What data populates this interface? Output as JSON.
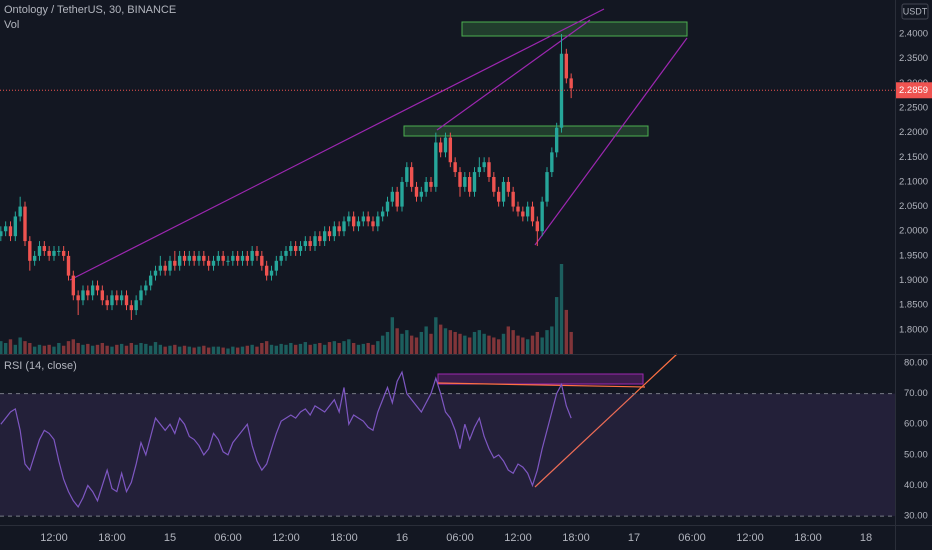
{
  "chart_data": [
    {
      "type": "candlestick",
      "title": "Ontology / TetherUS, 30, BINANCE",
      "volume_label": "Vol",
      "currency": "USDT",
      "up_color": "#26a69a",
      "down_color": "#ef5350",
      "last_price": 2.2859,
      "last_price_color": "#ef5350",
      "open": [
        1.99,
        2.0,
        2.01,
        1.99,
        2.03,
        2.05,
        1.98,
        1.94,
        1.95,
        1.97,
        1.96,
        1.95,
        1.96,
        1.96,
        1.95,
        1.91,
        1.87,
        1.86,
        1.88,
        1.87,
        1.89,
        1.88,
        1.86,
        1.85,
        1.87,
        1.86,
        1.87,
        1.85,
        1.84,
        1.86,
        1.88,
        1.89,
        1.91,
        1.92,
        1.93,
        1.92,
        1.94,
        1.93,
        1.95,
        1.94,
        1.95,
        1.94,
        1.95,
        1.94,
        1.93,
        1.94,
        1.95,
        1.94,
        1.94,
        1.95,
        1.94,
        1.95,
        1.94,
        1.96,
        1.95,
        1.93,
        1.91,
        1.92,
        1.94,
        1.95,
        1.96,
        1.97,
        1.96,
        1.97,
        1.98,
        1.97,
        1.99,
        1.98,
        2.0,
        1.99,
        2.01,
        2.0,
        2.02,
        2.03,
        2.01,
        2.02,
        2.03,
        2.02,
        2.01,
        2.03,
        2.04,
        2.06,
        2.08,
        2.05,
        2.1,
        2.13,
        2.09,
        2.07,
        2.08,
        2.1,
        2.09,
        2.18,
        2.16,
        2.19,
        2.14,
        2.12,
        2.09,
        2.11,
        2.08,
        2.12,
        2.13,
        2.14,
        2.11,
        2.08,
        2.06,
        2.1,
        2.08,
        2.05,
        2.04,
        2.03,
        2.05,
        2.02,
        2.0,
        2.06,
        2.12,
        2.16,
        2.21,
        2.36,
        2.31
      ],
      "high": [
        2.01,
        2.02,
        2.02,
        2.04,
        2.07,
        2.06,
        1.99,
        1.96,
        1.98,
        1.98,
        1.97,
        1.97,
        1.97,
        1.97,
        1.96,
        1.92,
        1.88,
        1.89,
        1.89,
        1.9,
        1.9,
        1.89,
        1.87,
        1.88,
        1.88,
        1.88,
        1.88,
        1.86,
        1.87,
        1.89,
        1.9,
        1.92,
        1.93,
        1.95,
        1.94,
        1.95,
        1.96,
        1.96,
        1.96,
        1.96,
        1.96,
        1.96,
        1.96,
        1.95,
        1.95,
        1.96,
        1.96,
        1.95,
        1.96,
        1.96,
        1.96,
        1.96,
        1.97,
        1.97,
        1.96,
        1.94,
        1.93,
        1.95,
        1.96,
        1.97,
        1.98,
        1.98,
        1.98,
        1.99,
        1.99,
        2.0,
        2.0,
        2.01,
        2.01,
        2.02,
        2.02,
        2.03,
        2.04,
        2.04,
        2.03,
        2.04,
        2.04,
        2.03,
        2.04,
        2.05,
        2.07,
        2.09,
        2.09,
        2.11,
        2.14,
        2.14,
        2.1,
        2.09,
        2.11,
        2.11,
        2.2,
        2.19,
        2.2,
        2.2,
        2.15,
        2.13,
        2.12,
        2.12,
        2.13,
        2.15,
        2.15,
        2.15,
        2.12,
        2.09,
        2.11,
        2.11,
        2.09,
        2.06,
        2.05,
        2.06,
        2.06,
        2.03,
        2.07,
        2.13,
        2.17,
        2.22,
        2.4,
        2.37,
        2.32
      ],
      "low": [
        1.98,
        1.99,
        1.98,
        1.98,
        2.02,
        1.97,
        1.92,
        1.93,
        1.94,
        1.95,
        1.94,
        1.94,
        1.95,
        1.94,
        1.9,
        1.86,
        1.83,
        1.85,
        1.86,
        1.86,
        1.87,
        1.85,
        1.84,
        1.84,
        1.85,
        1.85,
        1.84,
        1.82,
        1.83,
        1.85,
        1.87,
        1.88,
        1.9,
        1.91,
        1.91,
        1.91,
        1.92,
        1.92,
        1.93,
        1.93,
        1.93,
        1.93,
        1.93,
        1.92,
        1.92,
        1.93,
        1.93,
        1.93,
        1.93,
        1.93,
        1.93,
        1.93,
        1.93,
        1.94,
        1.92,
        1.9,
        1.9,
        1.91,
        1.93,
        1.94,
        1.95,
        1.95,
        1.95,
        1.96,
        1.96,
        1.96,
        1.97,
        1.97,
        1.98,
        1.98,
        1.99,
        1.99,
        2.01,
        2.0,
        2.0,
        2.01,
        2.01,
        2.0,
        2.0,
        2.02,
        2.03,
        2.05,
        2.04,
        2.04,
        2.09,
        2.08,
        2.06,
        2.06,
        2.07,
        2.08,
        2.08,
        2.15,
        2.15,
        2.13,
        2.11,
        2.07,
        2.08,
        2.07,
        2.07,
        2.11,
        2.12,
        2.1,
        2.07,
        2.05,
        2.05,
        2.07,
        2.04,
        2.03,
        2.02,
        2.02,
        2.01,
        1.97,
        1.99,
        2.05,
        2.11,
        2.15,
        2.2,
        2.3,
        2.27
      ],
      "close": [
        2.0,
        2.01,
        1.99,
        2.03,
        2.05,
        1.98,
        1.94,
        1.95,
        1.97,
        1.96,
        1.95,
        1.96,
        1.96,
        1.95,
        1.91,
        1.87,
        1.86,
        1.88,
        1.87,
        1.89,
        1.88,
        1.86,
        1.85,
        1.87,
        1.86,
        1.87,
        1.85,
        1.84,
        1.86,
        1.88,
        1.89,
        1.91,
        1.92,
        1.93,
        1.92,
        1.94,
        1.93,
        1.95,
        1.94,
        1.95,
        1.94,
        1.95,
        1.94,
        1.93,
        1.94,
        1.95,
        1.94,
        1.94,
        1.95,
        1.94,
        1.95,
        1.94,
        1.96,
        1.95,
        1.93,
        1.91,
        1.92,
        1.94,
        1.95,
        1.96,
        1.97,
        1.96,
        1.97,
        1.98,
        1.97,
        1.99,
        1.98,
        2.0,
        1.99,
        2.01,
        2.0,
        2.02,
        2.03,
        2.01,
        2.02,
        2.03,
        2.02,
        2.01,
        2.03,
        2.04,
        2.06,
        2.08,
        2.05,
        2.1,
        2.13,
        2.09,
        2.07,
        2.08,
        2.1,
        2.09,
        2.18,
        2.16,
        2.19,
        2.14,
        2.12,
        2.09,
        2.11,
        2.08,
        2.12,
        2.13,
        2.14,
        2.11,
        2.08,
        2.06,
        2.1,
        2.08,
        2.05,
        2.04,
        2.03,
        2.05,
        2.02,
        2.0,
        2.06,
        2.12,
        2.16,
        2.21,
        2.36,
        2.31,
        2.29
      ],
      "volume": [
        14,
        12,
        16,
        10,
        18,
        14,
        12,
        8,
        10,
        9,
        10,
        8,
        12,
        9,
        14,
        16,
        12,
        10,
        11,
        9,
        10,
        12,
        9,
        8,
        10,
        11,
        9,
        12,
        10,
        12,
        11,
        9,
        13,
        10,
        8,
        9,
        10,
        8,
        9,
        8,
        7,
        8,
        9,
        7,
        8,
        8,
        7,
        6,
        8,
        7,
        8,
        9,
        10,
        8,
        12,
        14,
        10,
        9,
        11,
        10,
        12,
        10,
        11,
        13,
        10,
        11,
        12,
        10,
        13,
        14,
        12,
        14,
        16,
        12,
        10,
        11,
        12,
        10,
        14,
        20,
        24,
        40,
        28,
        22,
        26,
        20,
        18,
        24,
        30,
        22,
        40,
        32,
        28,
        26,
        24,
        22,
        20,
        18,
        24,
        26,
        22,
        20,
        18,
        16,
        22,
        30,
        26,
        20,
        18,
        16,
        20,
        24,
        18,
        26,
        30,
        62,
        98,
        48,
        24
      ],
      "xlim": [
        -0.17,
        185
      ],
      "ylim": [
        1.751,
        2.469
      ],
      "yticks": [
        {
          "value": 1.8,
          "label": "1.8000"
        },
        {
          "value": 1.85,
          "label": "1.8500"
        },
        {
          "value": 1.9,
          "label": "1.9000"
        },
        {
          "value": 1.95,
          "label": "1.9500"
        },
        {
          "value": 2.0,
          "label": "2.0000"
        },
        {
          "value": 2.05,
          "label": "2.0500"
        },
        {
          "value": 2.1,
          "label": "2.1000"
        },
        {
          "value": 2.15,
          "label": "2.1500"
        },
        {
          "value": 2.2,
          "label": "2.2000"
        },
        {
          "value": 2.25,
          "label": "2.2500"
        },
        {
          "value": 2.3,
          "label": "2.3000"
        },
        {
          "value": 2.35,
          "label": "2.3500"
        },
        {
          "value": 2.4,
          "label": "2.4000"
        }
      ],
      "grid": true
    },
    {
      "type": "line",
      "title": "RSI (14, close)",
      "color": "#7e57c2",
      "band": [
        30,
        70
      ],
      "band_color": "#7e57c2",
      "values": [
        60,
        62,
        64,
        65,
        58,
        47,
        45,
        50,
        55,
        58,
        57,
        55,
        48,
        42,
        38,
        35,
        33,
        36,
        40,
        38,
        35,
        40,
        45,
        39,
        38,
        44,
        38,
        41,
        47,
        54,
        50,
        56,
        62,
        60,
        58,
        60,
        57,
        62,
        60,
        56,
        55,
        53,
        50,
        52,
        57,
        55,
        51,
        50,
        54,
        56,
        58,
        60,
        53,
        48,
        45,
        47,
        52,
        57,
        61,
        62,
        63,
        62,
        64,
        65,
        63,
        66,
        65,
        64,
        66,
        68,
        64,
        72,
        60,
        63,
        62,
        61,
        59,
        58,
        64,
        68,
        72,
        67,
        74,
        77,
        70,
        68,
        66,
        64,
        67,
        70,
        75,
        70,
        64,
        62,
        58,
        52,
        60,
        55,
        59,
        62,
        56,
        52,
        49,
        50,
        48,
        45,
        44,
        47,
        46,
        44,
        40,
        45,
        52,
        58,
        64,
        70,
        73,
        66,
        62
      ],
      "xlim": [
        -0.17,
        185
      ],
      "ylim": [
        27.1,
        82.6
      ],
      "yticks": [
        {
          "value": 30,
          "label": "30.00"
        },
        {
          "value": 40,
          "label": "40.00"
        },
        {
          "value": 50,
          "label": "50.00"
        },
        {
          "value": 60,
          "label": "60.00"
        },
        {
          "value": 70,
          "label": "70.00"
        },
        {
          "value": 80,
          "label": "80.00"
        }
      ],
      "xticks": [
        {
          "value": 11,
          "label": "12:00"
        },
        {
          "value": 23,
          "label": "18:00"
        },
        {
          "value": 35,
          "label": "15"
        },
        {
          "value": 47,
          "label": "06:00"
        },
        {
          "value": 59,
          "label": "12:00"
        },
        {
          "value": 71,
          "label": "18:00"
        },
        {
          "value": 83,
          "label": "16"
        },
        {
          "value": 95,
          "label": "06:00"
        },
        {
          "value": 107,
          "label": "12:00"
        },
        {
          "value": 119,
          "label": "18:00"
        },
        {
          "value": 131,
          "label": "17"
        },
        {
          "value": 143,
          "label": "06:00"
        },
        {
          "value": 155,
          "label": "12:00"
        },
        {
          "value": 167,
          "label": "18:00"
        },
        {
          "value": 179,
          "label": "18"
        }
      ],
      "grid": true
    }
  ]
}
